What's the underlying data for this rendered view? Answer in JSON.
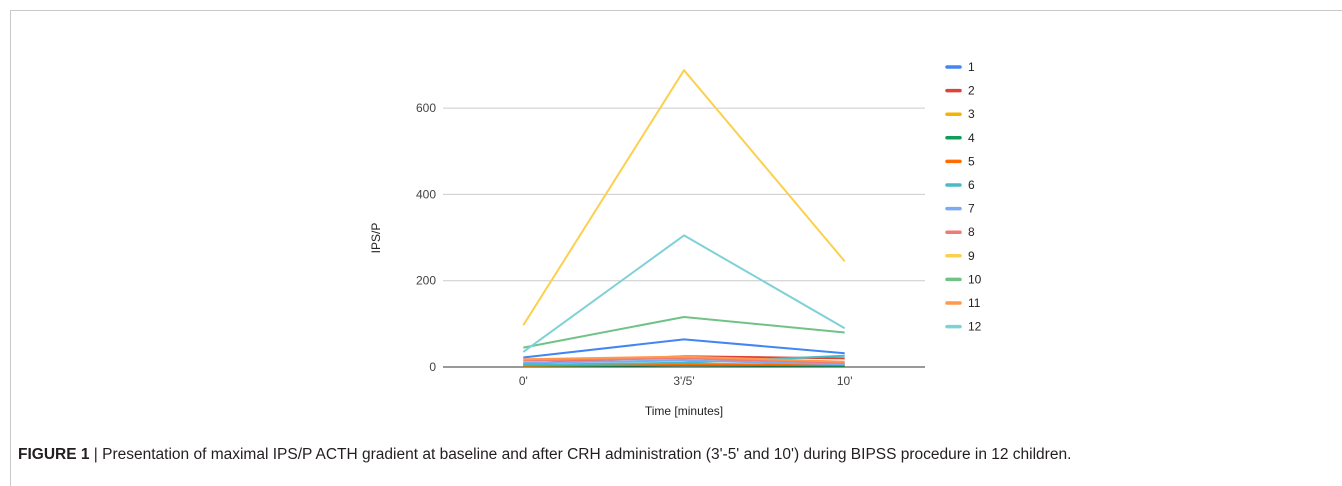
{
  "chart_data": {
    "type": "line",
    "categories": [
      "0'",
      "3'/5'",
      "10'"
    ],
    "xlabel": "Time [minutes]",
    "ylabel": "IPS/P",
    "ylim": [
      0,
      700
    ],
    "yticks": [
      0,
      200,
      400,
      600
    ],
    "grid": true,
    "legend": "right",
    "series": [
      {
        "name": "1",
        "color": "#4285F4",
        "values": [
          22,
          64,
          32
        ]
      },
      {
        "name": "2",
        "color": "#DB4437",
        "values": [
          8,
          25,
          20
        ]
      },
      {
        "name": "3",
        "color": "#F4B400",
        "values": [
          4,
          8,
          4
        ]
      },
      {
        "name": "4",
        "color": "#0F9D58",
        "values": [
          2,
          4,
          3
        ]
      },
      {
        "name": "5",
        "color": "#FF6D01",
        "values": [
          3,
          6,
          5
        ]
      },
      {
        "name": "6",
        "color": "#46BDC6",
        "values": [
          5,
          10,
          26
        ]
      },
      {
        "name": "7",
        "color": "#7BAAF7",
        "values": [
          10,
          15,
          6
        ]
      },
      {
        "name": "8",
        "color": "#F07B72",
        "values": [
          15,
          20,
          10
        ]
      },
      {
        "name": "9",
        "color": "#FCD04F",
        "values": [
          97,
          688,
          245
        ]
      },
      {
        "name": "10",
        "color": "#71C287",
        "values": [
          45,
          116,
          80
        ]
      },
      {
        "name": "11",
        "color": "#FF994D",
        "values": [
          18,
          24,
          12
        ]
      },
      {
        "name": "12",
        "color": "#7ED1D7",
        "values": [
          35,
          305,
          90
        ]
      }
    ],
    "colors": {
      "gridline": "#cccccc",
      "axis": "#333333"
    }
  },
  "caption": {
    "label": "FIGURE 1",
    "separator": "|",
    "text": "Presentation of maximal IPS/P ACTH gradient at baseline and after CRH administration (3'-5' and 10') during BIPSS procedure in 12 children."
  }
}
